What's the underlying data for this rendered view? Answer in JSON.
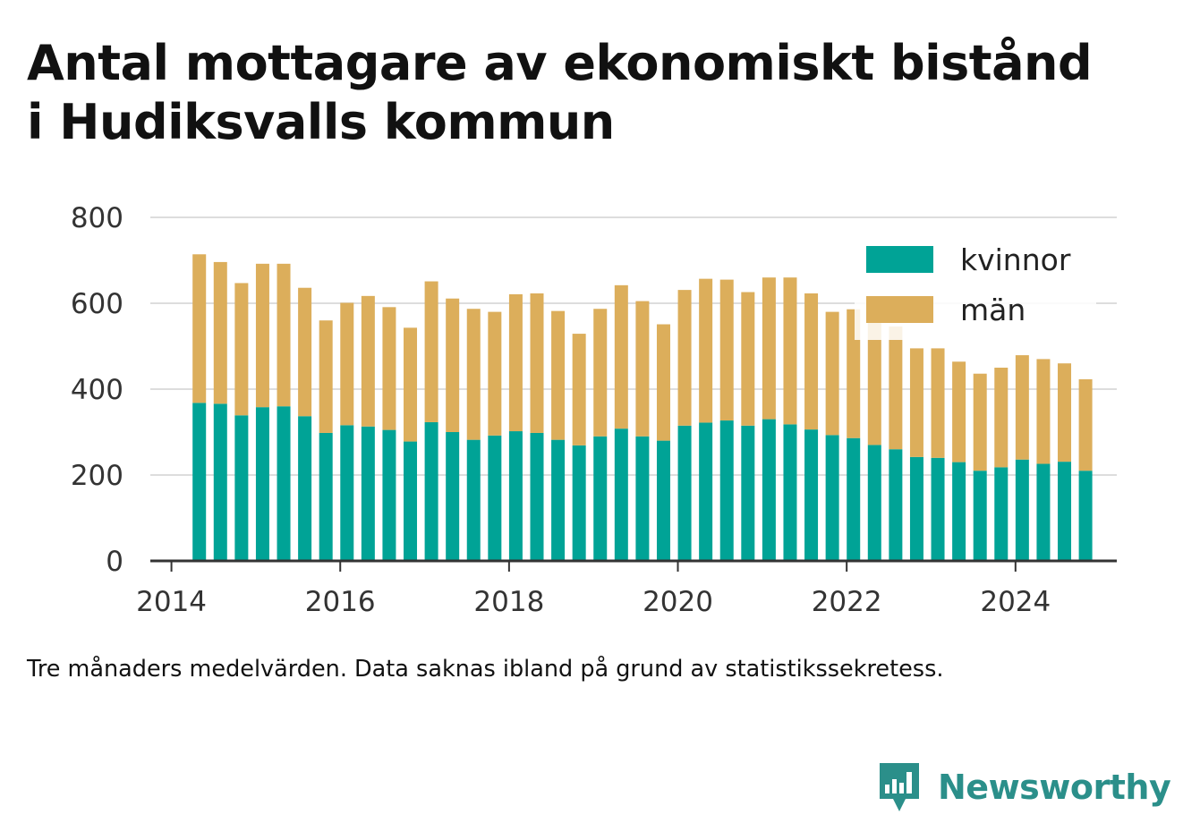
{
  "title": {
    "line1": "Antal mottagare av ekonomiskt bistånd",
    "line2": "i Hudiksvalls kommun"
  },
  "note": "Tre månaders medelvärden. Data saknas ibland på grund av statistikssekretess.",
  "brand": {
    "name": "Newsworthy",
    "icon": "bar-chart-speech-bubble-icon",
    "color": "#2b8f8a"
  },
  "colors": {
    "kvinnor": "#00a396",
    "man": "#dcae5b",
    "grid": "#dddddd",
    "axis": "#333333"
  },
  "chart_data": {
    "type": "bar",
    "stacked": true,
    "title": "Antal mottagare av ekonomiskt bistånd i Hudiksvalls kommun",
    "xlabel": "",
    "ylabel": "",
    "ylim": [
      0,
      800
    ],
    "xlim": [
      2013.75,
      2025.2
    ],
    "grid": true,
    "legend_position": "top-right",
    "y_ticks": [
      "0",
      "200",
      "400",
      "600",
      "800"
    ],
    "x_ticks": [
      "2014",
      "2016",
      "2018",
      "2020",
      "2022",
      "2024"
    ],
    "x": [
      2014.33,
      2014.58,
      2014.83,
      2015.08,
      2015.33,
      2015.58,
      2015.83,
      2016.08,
      2016.33,
      2016.58,
      2016.83,
      2017.08,
      2017.33,
      2017.58,
      2017.83,
      2018.08,
      2018.33,
      2018.58,
      2018.83,
      2019.08,
      2019.33,
      2019.58,
      2019.83,
      2020.08,
      2020.33,
      2020.58,
      2020.83,
      2021.08,
      2021.33,
      2021.58,
      2021.83,
      2022.08,
      2022.33,
      2022.58,
      2022.83,
      2023.08,
      2023.33,
      2023.58,
      2023.83,
      2024.08,
      2024.33,
      2024.58,
      2024.83
    ],
    "series": [
      {
        "name": "kvinnor",
        "color": "#00a396",
        "values": [
          368,
          366,
          339,
          358,
          360,
          337,
          298,
          316,
          313,
          305,
          278,
          323,
          300,
          282,
          292,
          302,
          298,
          282,
          269,
          290,
          308,
          290,
          280,
          315,
          322,
          327,
          315,
          330,
          318,
          306,
          293,
          286,
          270,
          260,
          242,
          240,
          230,
          210,
          218,
          236,
          226,
          231,
          210
        ]
      },
      {
        "name": "män",
        "color": "#dcae5b",
        "values": [
          346,
          330,
          308,
          334,
          332,
          299,
          262,
          285,
          304,
          286,
          265,
          328,
          311,
          305,
          288,
          319,
          325,
          300,
          260,
          297,
          334,
          315,
          271,
          316,
          335,
          328,
          311,
          330,
          342,
          317,
          287,
          300,
          312,
          286,
          253,
          255,
          234,
          226,
          232,
          243,
          244,
          229,
          213
        ]
      }
    ]
  }
}
